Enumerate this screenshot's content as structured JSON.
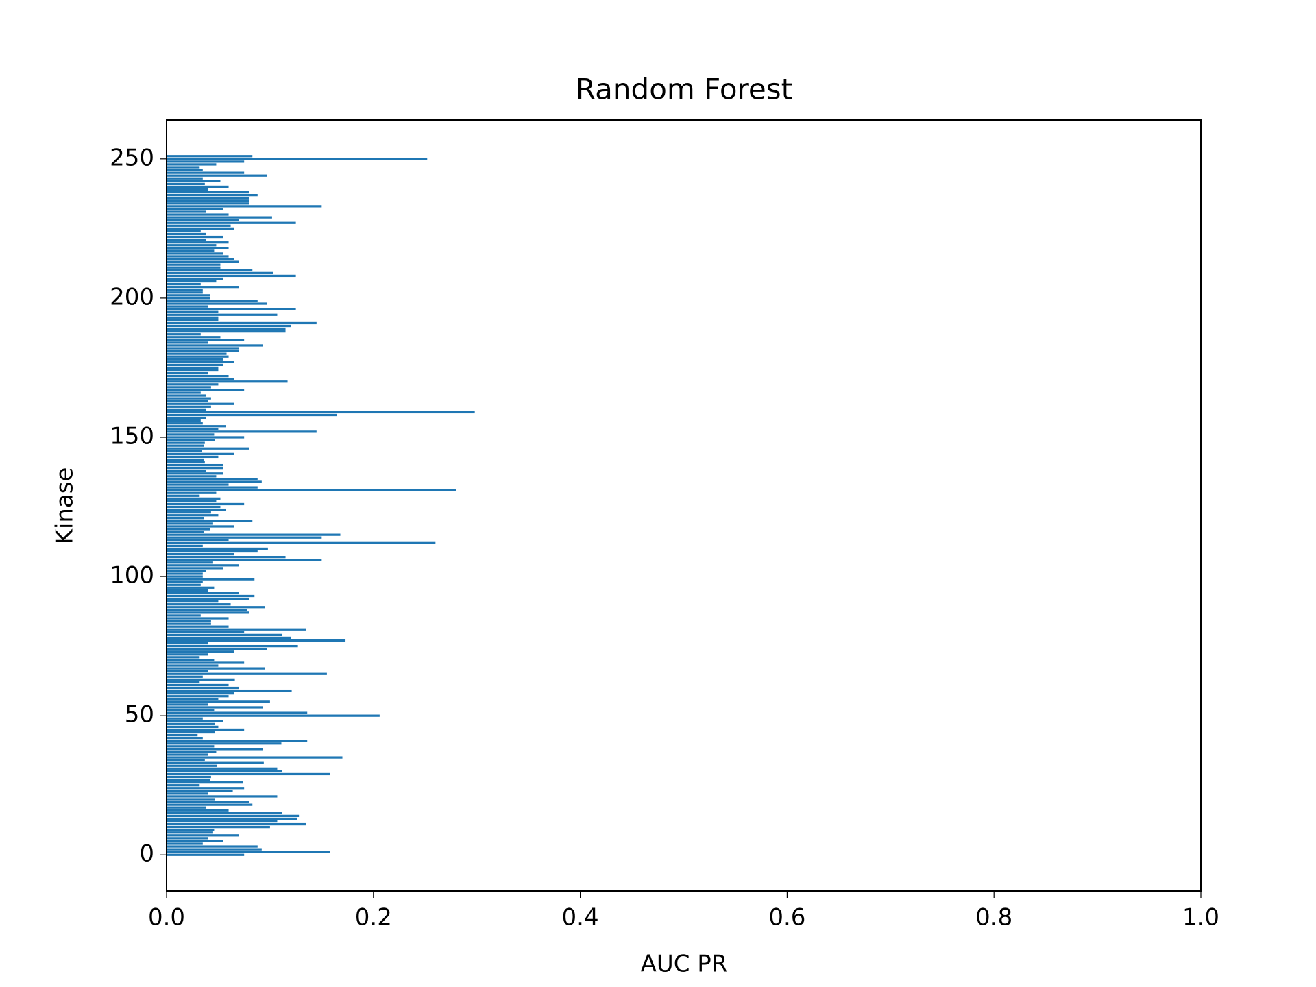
{
  "chart_data": {
    "type": "barh",
    "title": "Random Forest",
    "xlabel": "AUC PR",
    "ylabel": "Kinase",
    "color": "#1f77b4",
    "y": [
      0,
      1,
      2,
      3,
      4,
      5,
      6,
      7,
      8,
      9,
      10,
      11,
      12,
      13,
      14,
      15,
      16,
      17,
      18,
      19,
      20,
      21,
      22,
      23,
      24,
      25,
      26,
      27,
      28,
      29,
      30,
      31,
      32,
      33,
      34,
      35,
      36,
      37,
      38,
      39,
      40,
      41,
      42,
      43,
      44,
      45,
      46,
      47,
      48,
      49,
      50,
      51,
      52,
      53,
      54,
      55,
      56,
      57,
      58,
      59,
      60,
      61,
      62,
      63,
      64,
      65,
      66,
      67,
      68,
      69,
      70,
      71,
      72,
      73,
      74,
      75,
      76,
      77,
      78,
      79,
      80,
      81,
      82,
      83,
      84,
      85,
      86,
      87,
      88,
      89,
      90,
      91,
      92,
      93,
      94,
      95,
      96,
      97,
      98,
      99,
      100,
      101,
      102,
      103,
      104,
      105,
      106,
      107,
      108,
      109,
      110,
      111,
      112,
      113,
      114,
      115,
      116,
      117,
      118,
      119,
      120,
      121,
      122,
      123,
      124,
      125,
      126,
      127,
      128,
      129,
      130,
      131,
      132,
      133,
      134,
      135,
      136,
      137,
      138,
      139,
      140,
      141,
      142,
      143,
      144,
      145,
      146,
      147,
      148,
      149,
      150,
      151,
      152,
      153,
      154,
      155,
      156,
      157,
      158,
      159,
      160,
      161,
      162,
      163,
      164,
      165,
      166,
      167,
      168,
      169,
      170,
      171,
      172,
      173,
      174,
      175,
      176,
      177,
      178,
      179,
      180,
      181,
      182,
      183,
      184,
      185,
      186,
      187,
      188,
      189,
      190,
      191,
      192,
      193,
      194,
      195,
      196,
      197,
      198,
      199,
      200,
      201,
      202,
      203,
      204,
      205,
      206,
      207,
      208,
      209,
      210,
      211,
      212,
      213,
      214,
      215,
      216,
      217,
      218,
      219,
      220,
      221,
      222,
      223,
      224,
      225,
      226,
      227,
      228,
      229,
      230,
      231,
      232,
      233,
      234,
      235,
      236,
      237,
      238,
      239,
      240,
      241,
      242,
      243,
      244,
      245,
      246,
      247,
      248,
      249,
      250,
      251
    ],
    "values": [
      0.075,
      0.158,
      0.092,
      0.088,
      0.035,
      0.055,
      0.04,
      0.07,
      0.045,
      0.046,
      0.1,
      0.135,
      0.107,
      0.126,
      0.128,
      0.112,
      0.06,
      0.038,
      0.083,
      0.08,
      0.047,
      0.107,
      0.04,
      0.064,
      0.075,
      0.032,
      0.074,
      0.042,
      0.043,
      0.158,
      0.112,
      0.107,
      0.049,
      0.094,
      0.037,
      0.17,
      0.04,
      0.048,
      0.093,
      0.046,
      0.111,
      0.136,
      0.035,
      0.03,
      0.047,
      0.075,
      0.05,
      0.047,
      0.055,
      0.035,
      0.206,
      0.136,
      0.046,
      0.093,
      0.04,
      0.1,
      0.05,
      0.06,
      0.065,
      0.121,
      0.07,
      0.06,
      0.032,
      0.066,
      0.035,
      0.155,
      0.04,
      0.095,
      0.05,
      0.075,
      0.046,
      0.032,
      0.04,
      0.065,
      0.097,
      0.127,
      0.04,
      0.173,
      0.12,
      0.112,
      0.075,
      0.135,
      0.06,
      0.043,
      0.043,
      0.06,
      0.033,
      0.08,
      0.078,
      0.095,
      0.062,
      0.05,
      0.08,
      0.085,
      0.07,
      0.04,
      0.046,
      0.033,
      0.035,
      0.085,
      0.035,
      0.035,
      0.038,
      0.055,
      0.07,
      0.045,
      0.15,
      0.115,
      0.065,
      0.088,
      0.098,
      0.035,
      0.26,
      0.06,
      0.15,
      0.168,
      0.036,
      0.042,
      0.065,
      0.045,
      0.083,
      0.036,
      0.05,
      0.043,
      0.057,
      0.052,
      0.075,
      0.048,
      0.052,
      0.032,
      0.048,
      0.28,
      0.088,
      0.06,
      0.092,
      0.088,
      0.048,
      0.055,
      0.038,
      0.055,
      0.055,
      0.037,
      0.036,
      0.05,
      0.065,
      0.034,
      0.08,
      0.036,
      0.037,
      0.047,
      0.075,
      0.046,
      0.145,
      0.05,
      0.057,
      0.035,
      0.033,
      0.038,
      0.165,
      0.298,
      0.038,
      0.043,
      0.065,
      0.04,
      0.043,
      0.038,
      0.033,
      0.075,
      0.043,
      0.05,
      0.117,
      0.065,
      0.06,
      0.04,
      0.05,
      0.05,
      0.055,
      0.065,
      0.055,
      0.06,
      0.058,
      0.07,
      0.07,
      0.093,
      0.04,
      0.075,
      0.052,
      0.033,
      0.115,
      0.115,
      0.12,
      0.145,
      0.05,
      0.05,
      0.107,
      0.05,
      0.125,
      0.04,
      0.097,
      0.088,
      0.042,
      0.042,
      0.035,
      0.035,
      0.07,
      0.033,
      0.048,
      0.055,
      0.125,
      0.103,
      0.083,
      0.052,
      0.052,
      0.07,
      0.065,
      0.06,
      0.055,
      0.046,
      0.06,
      0.048,
      0.06,
      0.038,
      0.055,
      0.038,
      0.033,
      0.065,
      0.062,
      0.125,
      0.07,
      0.102,
      0.06,
      0.038,
      0.055,
      0.15,
      0.08,
      0.08,
      0.08,
      0.088,
      0.08,
      0.04,
      0.06,
      0.037,
      0.052,
      0.035,
      0.097,
      0.075,
      0.035,
      0.032,
      0.048,
      0.075,
      0.252,
      0.083
    ],
    "xlim": [
      0,
      1
    ],
    "xticks": [
      {
        "value": 0,
        "label": "0.0"
      },
      0.2,
      0.4,
      0.6,
      0.8,
      {
        "value": 1,
        "label": "1.0"
      }
    ],
    "ylim": [
      -12.99,
      263.99
    ],
    "yticks": [
      0,
      50,
      100,
      150,
      200,
      250
    ]
  }
}
